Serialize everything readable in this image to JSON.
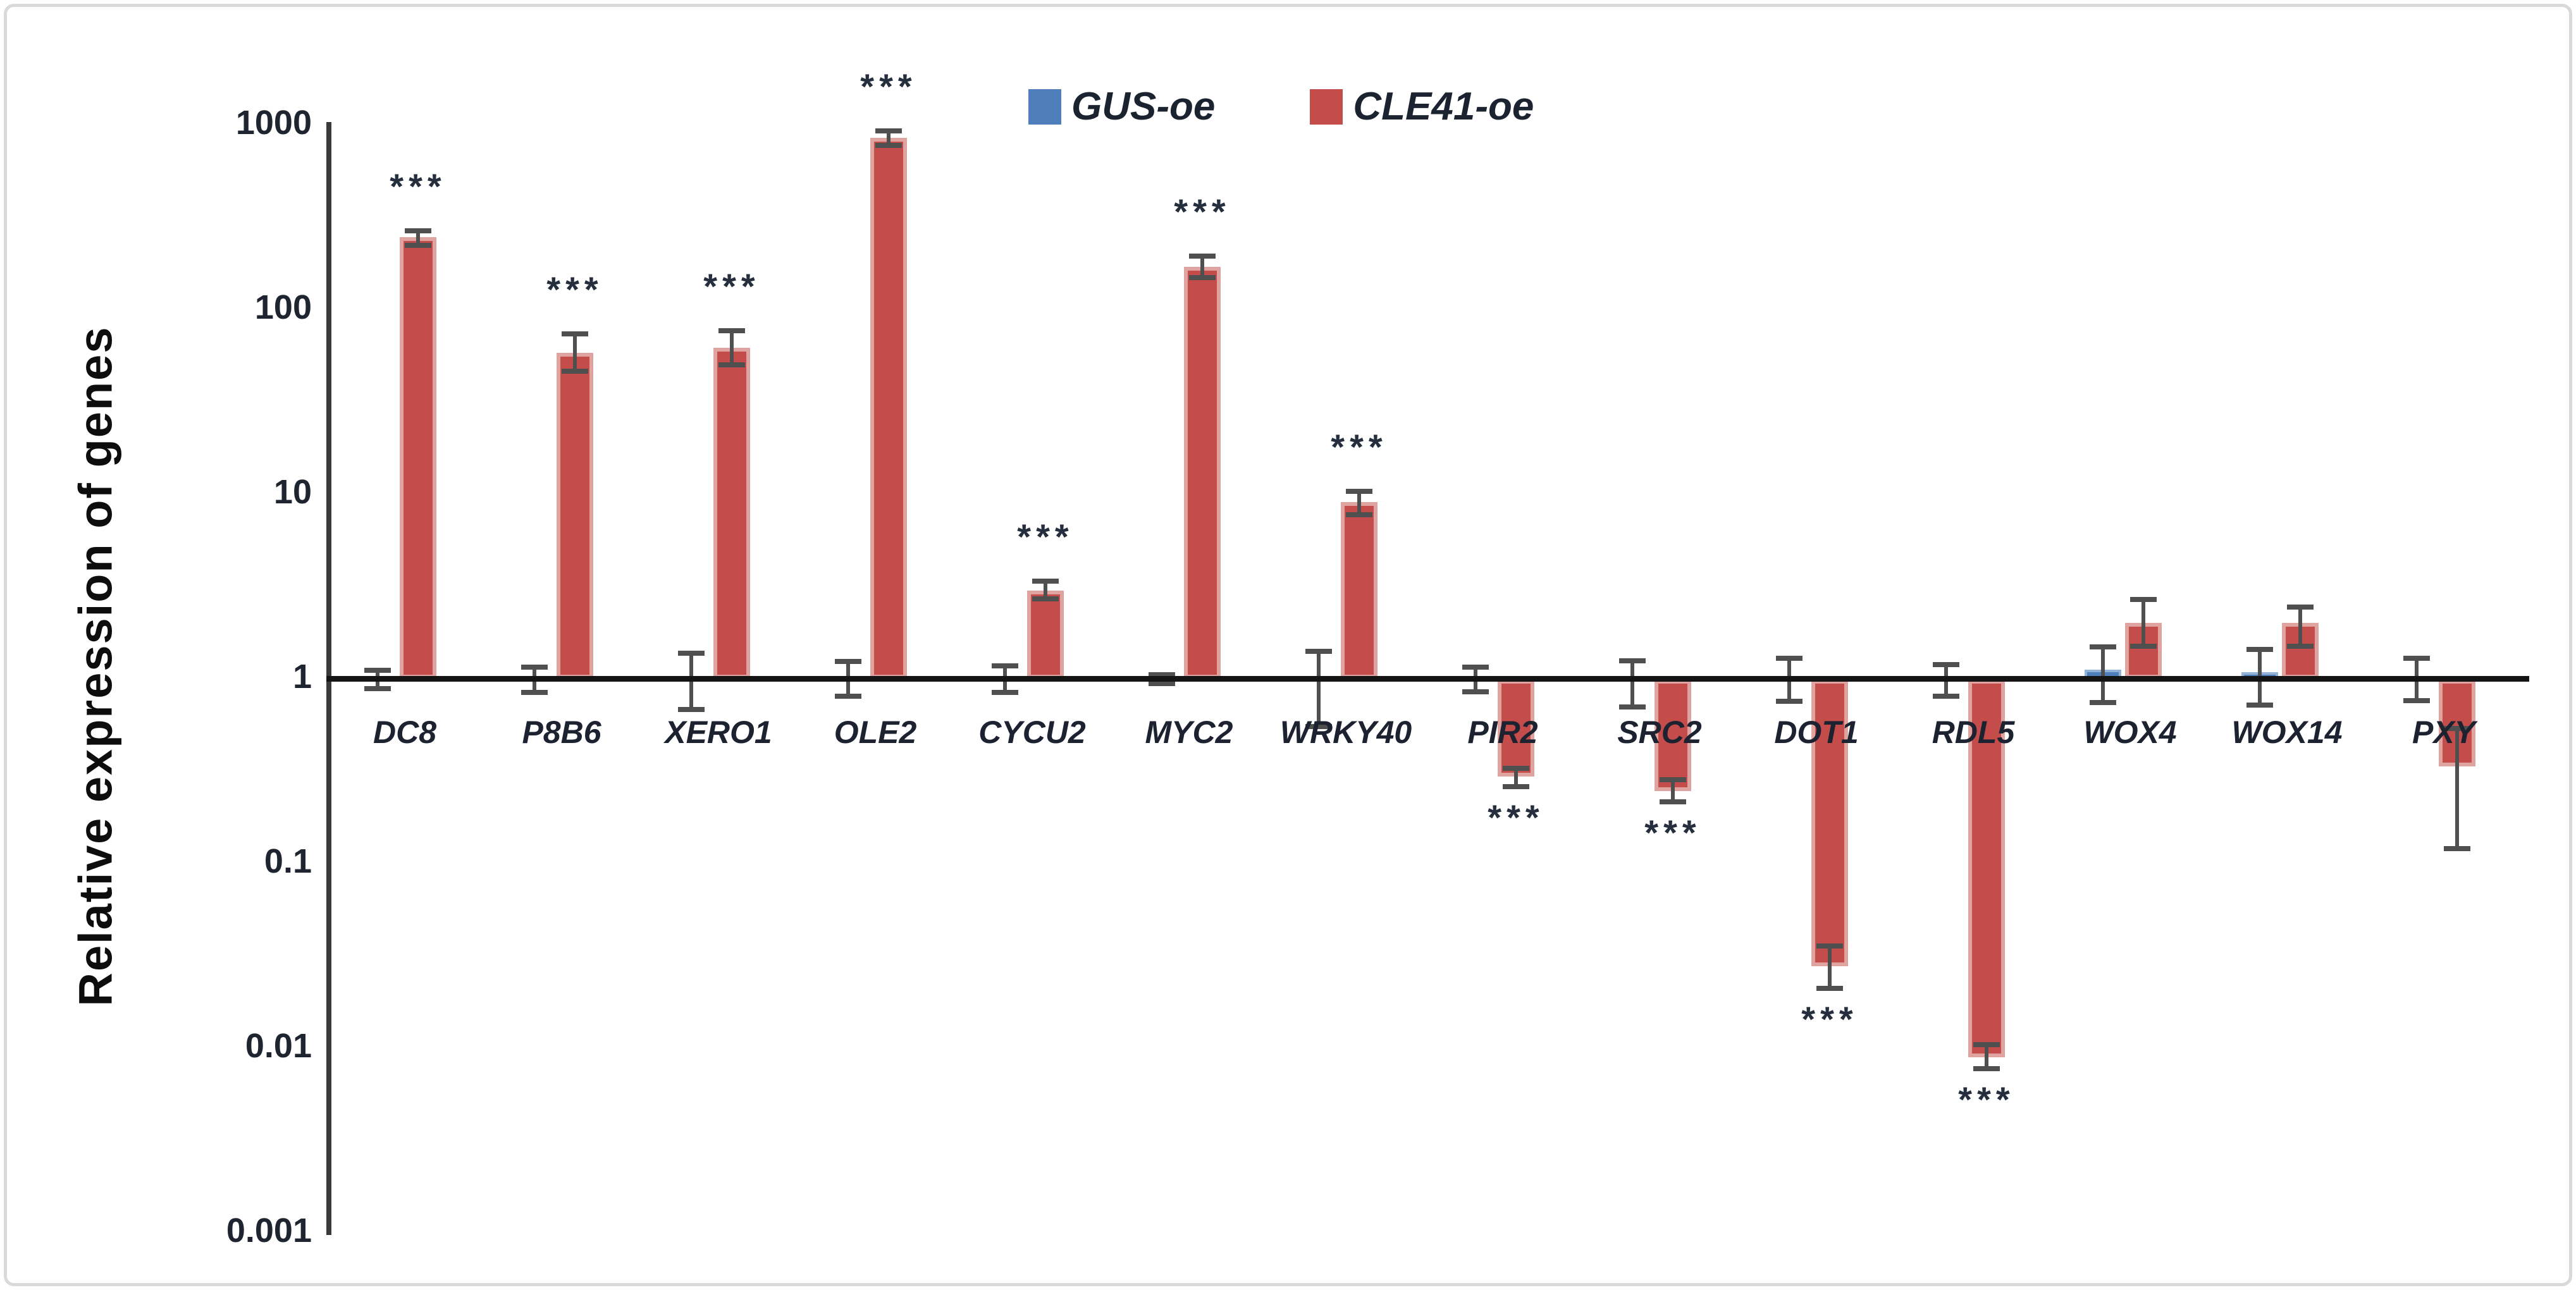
{
  "figure": {
    "y_axis_title": "Relative expression of genes",
    "colors": {
      "gus_fill": "#4E7FBB",
      "gus_edge": "#93B2D8",
      "cle_fill": "#C44D4B",
      "cle_edge": "#DFA3A0",
      "axis": "#3A3A3A",
      "baseline": "#141414",
      "error_bar": "#4F4F4F",
      "text": "#1C2230"
    }
  },
  "chart_data": {
    "type": "bar",
    "y_scale": "log10",
    "ylabel": "Relative expression of genes",
    "ylim": [
      0.001,
      1000
    ],
    "grid": false,
    "legend_position": "top-center",
    "y_ticks": [
      "1000",
      "100",
      "10",
      "1",
      "0.1",
      "0.01",
      "0.001"
    ],
    "y_tick_values": [
      1000,
      100,
      10,
      1,
      0.1,
      0.01,
      0.001
    ],
    "categories": [
      "DC8",
      "P8B6",
      "XERO1",
      "OLE2",
      "CYCU2",
      "MYC2",
      "WRKY40",
      "PIR2",
      "SRC2",
      "DOT1",
      "RDL5",
      "WOX4",
      "WOX14",
      "PXY"
    ],
    "series": [
      {
        "name": "GUS-oe",
        "color": "#4E7FBB",
        "values": [
          1,
          1,
          1,
          1,
          1,
          1,
          1,
          1,
          1,
          1,
          1,
          1.12,
          1.08,
          1
        ],
        "err_low": [
          0.88,
          0.84,
          0.68,
          0.8,
          0.84,
          0.94,
          0.55,
          0.85,
          0.7,
          0.75,
          0.8,
          0.74,
          0.72,
          0.76
        ],
        "err_high": [
          1.12,
          1.16,
          1.38,
          1.25,
          1.18,
          1.06,
          1.42,
          1.16,
          1.26,
          1.3,
          1.2,
          1.5,
          1.45,
          1.3
        ]
      },
      {
        "name": "CLE41-oe",
        "color": "#C44D4B",
        "values": [
          245,
          58,
          62,
          850,
          3,
          170,
          9,
          0.3,
          0.25,
          0.028,
          0.009,
          2.0,
          2.0,
          0.34
        ],
        "err_low": [
          222,
          46,
          50,
          770,
          2.7,
          148,
          7.7,
          0.26,
          0.215,
          0.021,
          0.0077,
          1.5,
          1.5,
          0.12
        ],
        "err_high": [
          268,
          74,
          77,
          930,
          3.4,
          196,
          10.4,
          0.33,
          0.285,
          0.036,
          0.0105,
          2.7,
          2.45,
          0.54
        ],
        "significance": [
          "***",
          "***",
          "***",
          "***",
          "***",
          "***",
          "***",
          "***",
          "***",
          "***",
          "***",
          "",
          "",
          ""
        ],
        "sig_position": [
          "above",
          "above",
          "above",
          "above",
          "above",
          "above",
          "above",
          "below",
          "below",
          "below",
          "below",
          "",
          "",
          ""
        ]
      }
    ]
  }
}
